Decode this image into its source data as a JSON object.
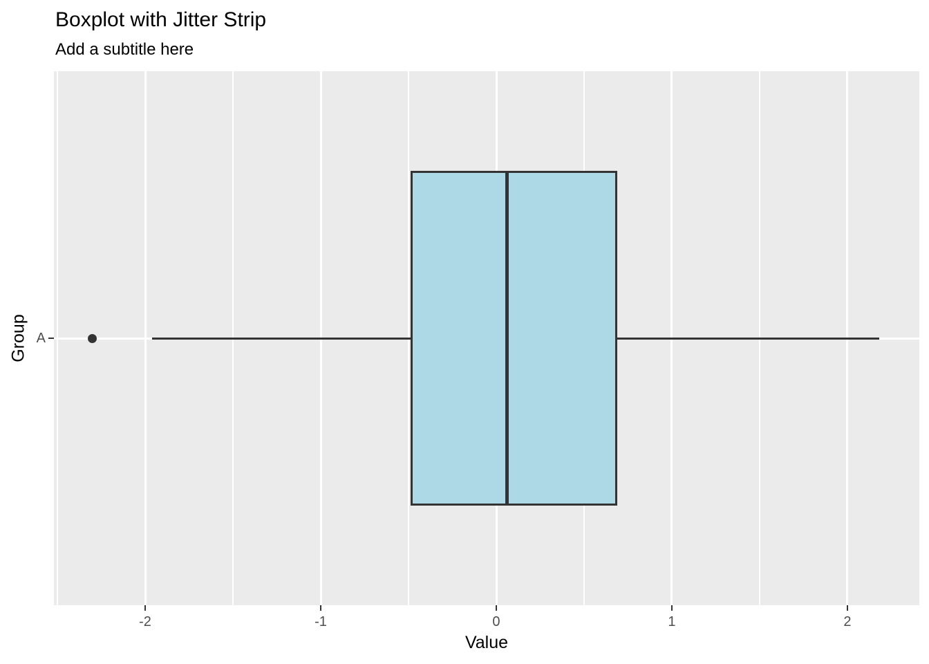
{
  "chart_data": {
    "type": "boxplot",
    "orientation": "horizontal",
    "title": "Boxplot with Jitter Strip",
    "subtitle": "Add a subtitle here",
    "xlabel": "Value",
    "ylabel": "Group",
    "categories": [
      "A"
    ],
    "series": [
      {
        "name": "A",
        "whisker_low": -1.96,
        "q1": -0.49,
        "median": 0.06,
        "q3": 0.69,
        "whisker_high": 2.18,
        "outliers": [
          -2.3
        ]
      }
    ],
    "x_ticks": [
      -2,
      -1,
      0,
      1,
      2
    ],
    "x_tick_labels": [
      "-2",
      "-1",
      "0",
      "1",
      "2"
    ],
    "x_minor_ticks": [
      -2.5,
      -1.5,
      -0.5,
      0.5,
      1.5
    ],
    "xlim": [
      -2.52,
      2.41
    ],
    "grid": "on",
    "legend": "none",
    "colors": {
      "box_fill": "#ADD8E6",
      "box_stroke": "#333333",
      "panel_bg": "#EBEBEB",
      "gridline": "#FFFFFF",
      "axis_text": "#4D4D4D",
      "axis_title": "#000000",
      "tick_mark": "#333333",
      "outlier": "#333333"
    }
  }
}
